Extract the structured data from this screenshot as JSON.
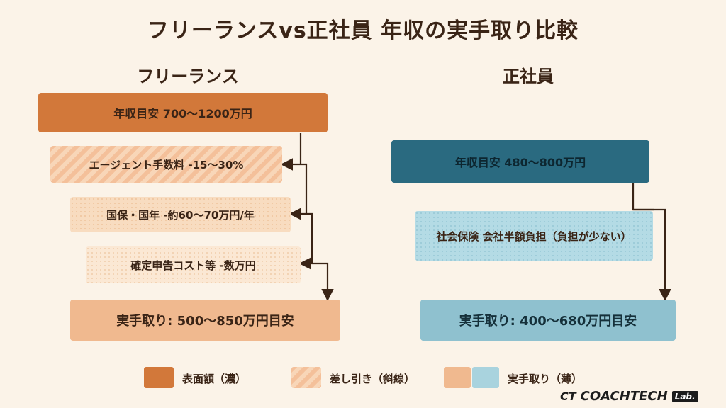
{
  "title": "フリーランスvs正社員 年収の実手取り比較",
  "freelance": {
    "heading": "フリーランス",
    "gross": "年収目安 700〜1200万円",
    "deduction1": "エージェント手数料 -15〜30%",
    "deduction2": "国保・国年 -約60〜70万円/年",
    "deduction3": "確定申告コスト等 -数万円",
    "net": "実手取り: 500〜850万円目安"
  },
  "employee": {
    "heading": "正社員",
    "gross": "年収目安 480〜800万円",
    "deduction1": "社会保険 会社半額負担（負担が少ない）",
    "net": "実手取り: 400〜680万円目安"
  },
  "legend": {
    "item1": "表面額（濃）",
    "item2": "差し引き（斜線）",
    "item3": "実手取り（薄）"
  },
  "brand": {
    "name": "COACHTECH",
    "lab": "Lab."
  },
  "colors": {
    "dark_orange": "#d2783a",
    "light_orange": "#f0b98f",
    "dark_teal": "#2a6a80",
    "light_blue": "#8fc1cf",
    "background": "#fbf3e8"
  }
}
